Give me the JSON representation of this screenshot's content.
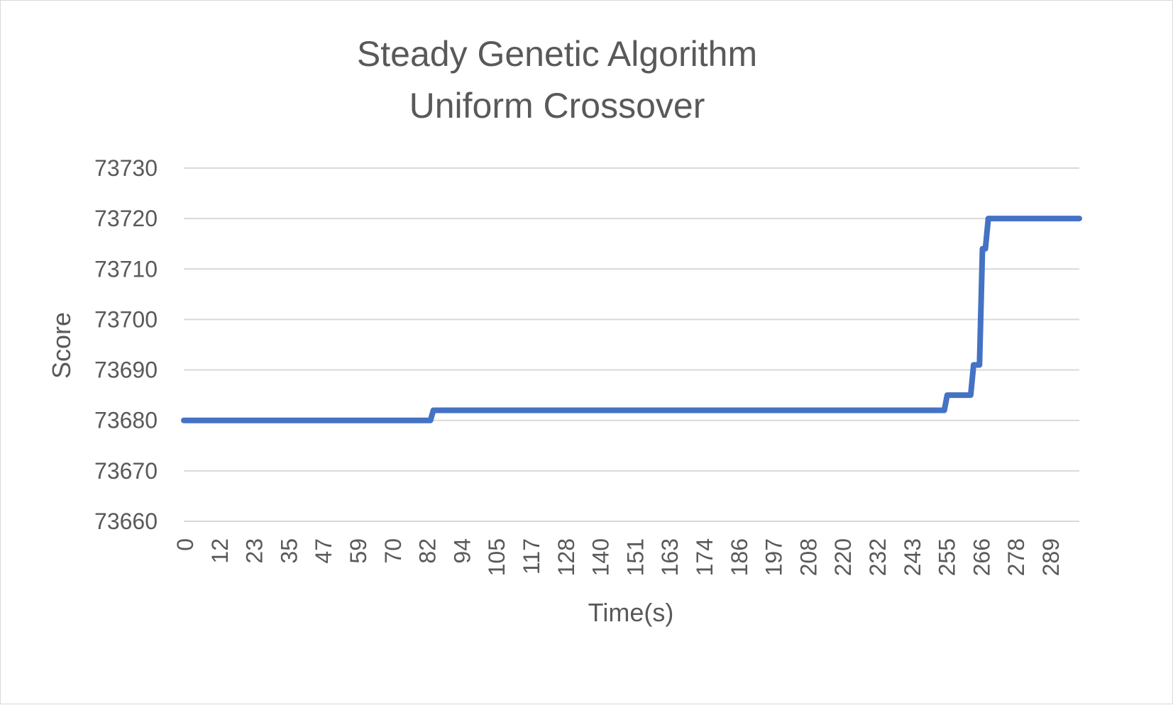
{
  "chart_data": {
    "type": "line",
    "title_lines": [
      "Steady Genetic Algorithm",
      "Uniform Crossover"
    ],
    "xlabel": "Time(s)",
    "ylabel": "Score",
    "ylim": [
      73660,
      73730
    ],
    "y_ticks": [
      73660,
      73670,
      73680,
      73690,
      73700,
      73710,
      73720,
      73730
    ],
    "x_tick_labels": [
      "0",
      "12",
      "23",
      "35",
      "47",
      "59",
      "70",
      "82",
      "94",
      "105",
      "117",
      "128",
      "140",
      "151",
      "163",
      "174",
      "186",
      "197",
      "208",
      "220",
      "232",
      "243",
      "255",
      "266",
      "278",
      "289"
    ],
    "x_range": [
      0,
      305
    ],
    "grid": true,
    "legend": "none",
    "series": [
      {
        "color": "#4472c4",
        "x": [
          0,
          84,
          85,
          259,
          260,
          268,
          269,
          271,
          272,
          273,
          274,
          305
        ],
        "y": [
          73680,
          73680,
          73682,
          73682,
          73685,
          73685,
          73691,
          73691,
          73714,
          73714,
          73720,
          73720
        ]
      }
    ]
  }
}
